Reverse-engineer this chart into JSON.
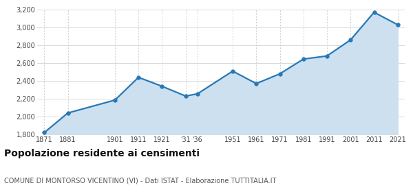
{
  "years": [
    1871,
    1881,
    1901,
    1911,
    1921,
    1931,
    1936,
    1951,
    1961,
    1971,
    1981,
    1991,
    2001,
    2011,
    2021
  ],
  "population": [
    1820,
    2040,
    2185,
    2440,
    2340,
    2230,
    2255,
    2510,
    2370,
    2480,
    2645,
    2680,
    2860,
    3170,
    3030
  ],
  "x_tick_labels": [
    "1871",
    "1881",
    "1901",
    "1911",
    "1921",
    "'31",
    "'36",
    "1951",
    "1961",
    "1971",
    "1981",
    "1991",
    "2001",
    "2011",
    "2021"
  ],
  "line_color": "#2778b5",
  "fill_color": "#cce0f0",
  "marker_color": "#2778b5",
  "bg_color": "#ffffff",
  "grid_color_h": "#cccccc",
  "grid_color_v": "#bbbbbb",
  "ylim": [
    1800,
    3200
  ],
  "yticks": [
    1800,
    2000,
    2200,
    2400,
    2600,
    2800,
    3000,
    3200
  ],
  "title": "Popolazione residente ai censimenti",
  "subtitle": "COMUNE DI MONTORSO VICENTINO (VI) - Dati ISTAT - Elaborazione TUTTITALIA.IT",
  "title_fontsize": 10,
  "subtitle_fontsize": 7
}
